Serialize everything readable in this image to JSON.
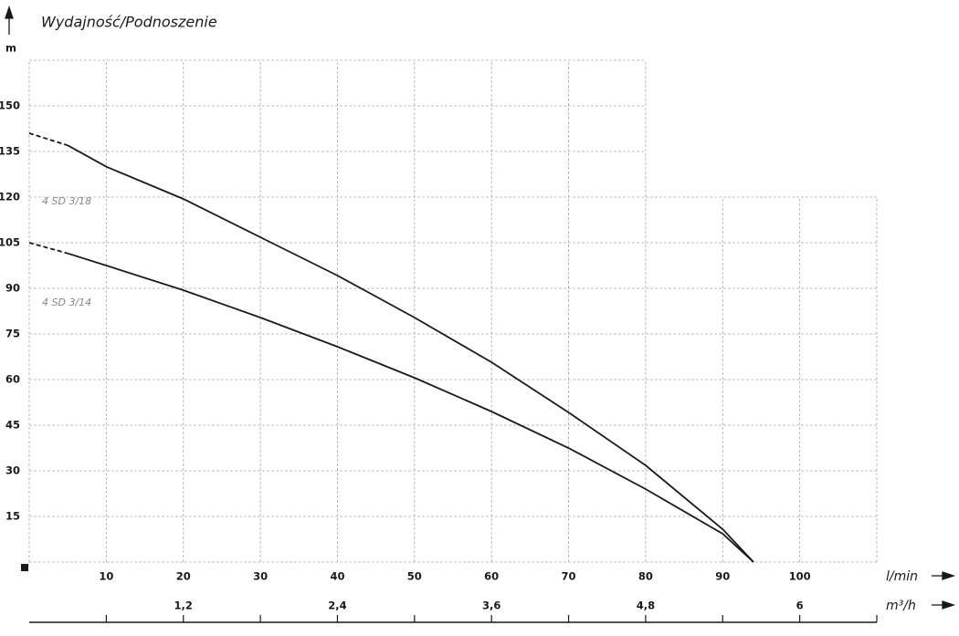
{
  "chart_data": {
    "type": "line",
    "title": "Wydajność/Podnoszenie",
    "y_label": "m",
    "x_label": "l/min",
    "x2_label": "m³/h",
    "xlim": [
      0,
      110
    ],
    "xticks": [
      10,
      20,
      30,
      40,
      50,
      60,
      70,
      80,
      90,
      100
    ],
    "ylim": [
      0,
      165
    ],
    "yticks": [
      15,
      30,
      45,
      60,
      75,
      90,
      105,
      120,
      135,
      150
    ],
    "x2lim": [
      0,
      6.6
    ],
    "x2ticks": [
      {
        "value": 1.2,
        "label": "1,2"
      },
      {
        "value": 2.4,
        "label": "2,4"
      },
      {
        "value": 3.6,
        "label": "3,6"
      },
      {
        "value": 4.8,
        "label": "4,8"
      },
      6
    ],
    "x2minor_ticks": [
      0.6,
      1.8,
      3.0,
      4.2,
      5.4,
      6.6
    ],
    "grid": true,
    "grid_notch": {
      "x": 80,
      "y": 120
    },
    "x": [
      0,
      5,
      10,
      20,
      30,
      40,
      50,
      60,
      70,
      80,
      90,
      94
    ],
    "dash_x_max": 5,
    "series": [
      {
        "name": "4 SD 3/18",
        "color": "#1a1a1a",
        "values": [
          141,
          137,
          130,
          119.4,
          106.8,
          94.2,
          80.4,
          65.7,
          49.2,
          31.8,
          10.8,
          0
        ]
      },
      {
        "name": "4 SD 3/14",
        "color": "#1a1a1a",
        "values": [
          105,
          101.5,
          97.5,
          89.4,
          80.4,
          70.8,
          60.6,
          49.5,
          37.5,
          24,
          9.3,
          0
        ]
      }
    ]
  }
}
